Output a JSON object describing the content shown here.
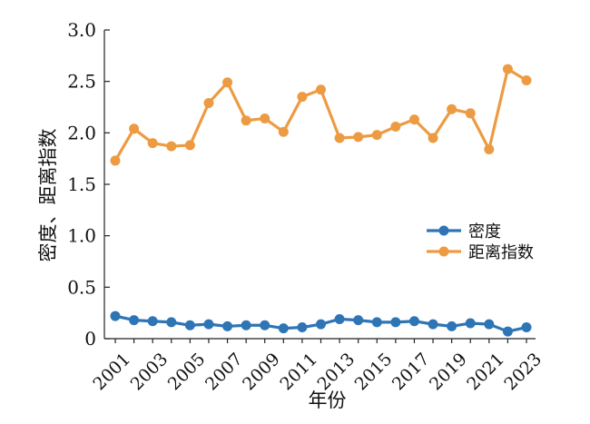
{
  "chart_data": {
    "type": "line",
    "xlabel": "年份",
    "ylabel": "密度、距离指数",
    "ylim": [
      0,
      3.0
    ],
    "yticks": [
      "0",
      "0.5",
      "1.0",
      "1.5",
      "2.0",
      "2.5",
      "3.0"
    ],
    "x": [
      2001,
      2002,
      2003,
      2004,
      2005,
      2006,
      2007,
      2008,
      2009,
      2010,
      2011,
      2012,
      2013,
      2014,
      2015,
      2016,
      2017,
      2018,
      2019,
      2020,
      2021,
      2022,
      2023
    ],
    "xticklabels": [
      "2001",
      "2003",
      "2005",
      "2007",
      "2009",
      "2011",
      "2013",
      "2015",
      "2017",
      "2019",
      "2021",
      "2023"
    ],
    "legend_position": "right-middle",
    "grid": false,
    "series": [
      {
        "name": "密度",
        "color": "#2E75B6",
        "values": [
          0.22,
          0.18,
          0.17,
          0.16,
          0.13,
          0.14,
          0.12,
          0.13,
          0.13,
          0.1,
          0.11,
          0.14,
          0.19,
          0.18,
          0.16,
          0.16,
          0.17,
          0.14,
          0.12,
          0.15,
          0.14,
          0.07,
          0.11
        ]
      },
      {
        "name": "距离指数",
        "color": "#ED9B42",
        "values": [
          1.73,
          2.04,
          1.9,
          1.87,
          1.88,
          2.29,
          2.49,
          2.12,
          2.14,
          2.01,
          2.35,
          2.42,
          1.95,
          1.96,
          1.98,
          2.06,
          2.13,
          1.95,
          2.23,
          2.19,
          1.84,
          2.62,
          2.51
        ]
      }
    ]
  }
}
